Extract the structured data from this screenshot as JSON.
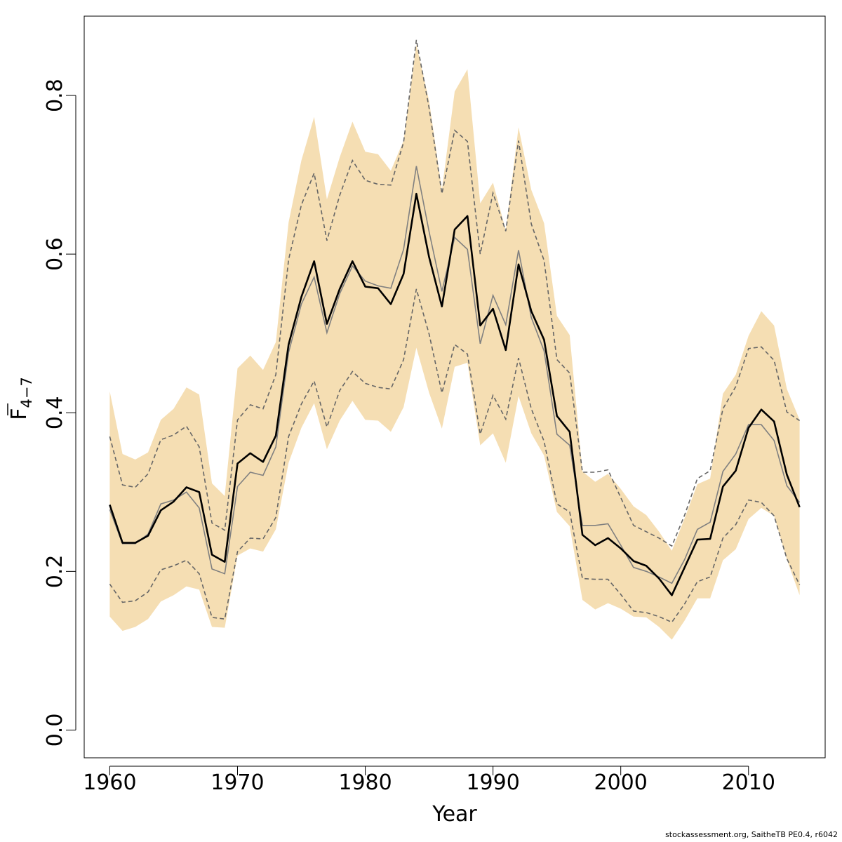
{
  "chart_data": {
    "type": "line",
    "title": "",
    "xlabel": "Year",
    "ylabel": {
      "main": "F",
      "sub": "4−7",
      "overbar": true
    },
    "xlim": [
      1958,
      2016
    ],
    "ylim": [
      -0.035,
      0.9
    ],
    "xticks": [
      1960,
      1970,
      1980,
      1990,
      2000,
      2010
    ],
    "yticks": [
      "0.0",
      "0.2",
      "0.4",
      "0.6",
      "0.8"
    ],
    "grid": false,
    "legend": "none",
    "colors": {
      "band": "#f5deb3",
      "estimate": "#000000",
      "reference": "#808080",
      "reference_ci": "#666666"
    },
    "x": [
      1960,
      1961,
      1962,
      1963,
      1964,
      1965,
      1966,
      1967,
      1968,
      1969,
      1970,
      1971,
      1972,
      1973,
      1974,
      1975,
      1976,
      1977,
      1978,
      1979,
      1980,
      1981,
      1982,
      1983,
      1984,
      1985,
      1986,
      1987,
      1988,
      1989,
      1990,
      1991,
      1992,
      1993,
      1994,
      1995,
      1996,
      1997,
      1998,
      1999,
      2000,
      2001,
      2002,
      2003,
      2004,
      2005,
      2006,
      2007,
      2008,
      2009,
      2010,
      2011,
      2012,
      2013,
      2014
    ],
    "series": [
      {
        "role": "band-upper",
        "values": [
          0.427,
          0.348,
          0.341,
          0.35,
          0.391,
          0.405,
          0.432,
          0.423,
          0.311,
          0.295,
          0.456,
          0.472,
          0.454,
          0.489,
          0.64,
          0.718,
          0.773,
          0.669,
          0.722,
          0.767,
          0.729,
          0.726,
          0.705,
          0.743,
          0.864,
          0.793,
          0.681,
          0.805,
          0.833,
          0.664,
          0.69,
          0.63,
          0.76,
          0.681,
          0.639,
          0.522,
          0.498,
          0.326,
          0.313,
          0.323,
          0.304,
          0.282,
          0.271,
          0.25,
          0.226,
          0.267,
          0.31,
          0.317,
          0.424,
          0.448,
          0.497,
          0.528,
          0.51,
          0.43,
          0.391
        ]
      },
      {
        "role": "band-lower",
        "values": [
          0.143,
          0.125,
          0.13,
          0.14,
          0.162,
          0.17,
          0.181,
          0.177,
          0.13,
          0.129,
          0.22,
          0.229,
          0.225,
          0.253,
          0.337,
          0.381,
          0.412,
          0.354,
          0.39,
          0.415,
          0.391,
          0.39,
          0.376,
          0.407,
          0.482,
          0.425,
          0.38,
          0.458,
          0.463,
          0.359,
          0.374,
          0.337,
          0.421,
          0.374,
          0.346,
          0.275,
          0.257,
          0.164,
          0.152,
          0.16,
          0.153,
          0.143,
          0.142,
          0.13,
          0.114,
          0.138,
          0.166,
          0.166,
          0.214,
          0.228,
          0.266,
          0.28,
          0.27,
          0.215,
          0.17
        ]
      },
      {
        "role": "estimate",
        "values": [
          0.284,
          0.236,
          0.236,
          0.245,
          0.277,
          0.288,
          0.306,
          0.3,
          0.221,
          0.212,
          0.336,
          0.349,
          0.338,
          0.371,
          0.486,
          0.546,
          0.591,
          0.512,
          0.556,
          0.591,
          0.559,
          0.557,
          0.537,
          0.575,
          0.676,
          0.596,
          0.534,
          0.631,
          0.648,
          0.51,
          0.531,
          0.479,
          0.587,
          0.528,
          0.492,
          0.396,
          0.376,
          0.246,
          0.233,
          0.242,
          0.229,
          0.213,
          0.207,
          0.191,
          0.17,
          0.205,
          0.24,
          0.241,
          0.307,
          0.327,
          0.381,
          0.404,
          0.389,
          0.322,
          0.281
        ]
      },
      {
        "role": "reference",
        "values": [
          0.278,
          0.235,
          0.235,
          0.247,
          0.285,
          0.29,
          0.3,
          0.28,
          0.203,
          0.197,
          0.307,
          0.325,
          0.321,
          0.357,
          0.476,
          0.537,
          0.571,
          0.501,
          0.55,
          0.585,
          0.566,
          0.56,
          0.557,
          0.606,
          0.711,
          0.628,
          0.553,
          0.621,
          0.606,
          0.487,
          0.548,
          0.511,
          0.605,
          0.52,
          0.478,
          0.373,
          0.359,
          0.258,
          0.258,
          0.26,
          0.233,
          0.205,
          0.2,
          0.193,
          0.185,
          0.215,
          0.253,
          0.262,
          0.326,
          0.348,
          0.385,
          0.385,
          0.365,
          0.308,
          0.287
        ]
      },
      {
        "role": "reference-upper",
        "values": [
          0.37,
          0.309,
          0.306,
          0.323,
          0.366,
          0.372,
          0.383,
          0.357,
          0.261,
          0.252,
          0.391,
          0.41,
          0.405,
          0.448,
          0.593,
          0.662,
          0.702,
          0.617,
          0.674,
          0.718,
          0.693,
          0.688,
          0.687,
          0.741,
          0.87,
          0.784,
          0.676,
          0.756,
          0.742,
          0.6,
          0.677,
          0.629,
          0.743,
          0.638,
          0.592,
          0.467,
          0.45,
          0.325,
          0.325,
          0.328,
          0.293,
          0.258,
          0.25,
          0.242,
          0.232,
          0.271,
          0.317,
          0.327,
          0.405,
          0.433,
          0.481,
          0.483,
          0.466,
          0.401,
          0.39
        ]
      },
      {
        "role": "reference-lower",
        "values": [
          0.184,
          0.161,
          0.163,
          0.174,
          0.202,
          0.207,
          0.214,
          0.197,
          0.142,
          0.14,
          0.225,
          0.242,
          0.241,
          0.268,
          0.37,
          0.411,
          0.44,
          0.382,
          0.428,
          0.452,
          0.437,
          0.432,
          0.43,
          0.467,
          0.556,
          0.499,
          0.425,
          0.486,
          0.474,
          0.373,
          0.422,
          0.392,
          0.469,
          0.405,
          0.364,
          0.285,
          0.275,
          0.191,
          0.19,
          0.19,
          0.171,
          0.15,
          0.148,
          0.143,
          0.136,
          0.159,
          0.187,
          0.193,
          0.242,
          0.259,
          0.29,
          0.287,
          0.27,
          0.216,
          0.183
        ]
      }
    ]
  },
  "footer": {
    "credit": "stockassessment.org, SaitheTB  PE0.4, r6042"
  }
}
